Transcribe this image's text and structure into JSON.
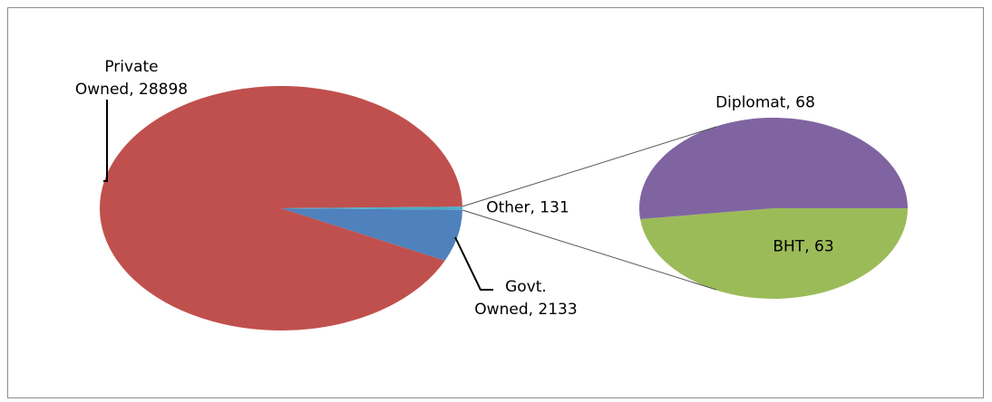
{
  "chart_data": {
    "type": "pie-of-pie",
    "values": [
      28898,
      2133,
      131
    ],
    "value_labels": [
      "Private\nOwned, 28898",
      "Govt.\nOwned, 2133",
      "Other, 131"
    ],
    "colors": [
      "#c0504d",
      "#4f81bd",
      "#4bacc6"
    ],
    "secondary": {
      "values": [
        68,
        63
      ],
      "value_labels": [
        "Diplomat, 68",
        "BHT, 63"
      ],
      "colors": [
        "#8064a2",
        "#9bbb59"
      ]
    }
  }
}
